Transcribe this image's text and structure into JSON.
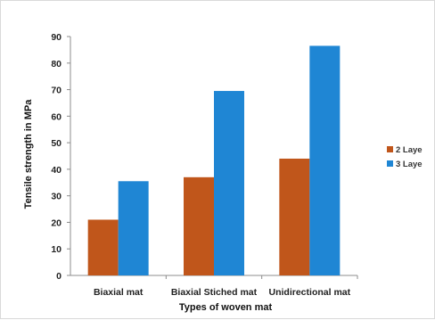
{
  "chart_data": {
    "type": "bar",
    "title": "",
    "xlabel": "Types of woven mat",
    "ylabel": "Tensile strength in MPa",
    "categories": [
      "Biaxial mat",
      "Biaxial Stiched mat",
      "Unidirectional mat"
    ],
    "series": [
      {
        "name": "2 Laye",
        "color": "#c0561b",
        "values": [
          21,
          37,
          44
        ]
      },
      {
        "name": "3 Laye",
        "color": "#1f86d4",
        "values": [
          35.5,
          69.5,
          86.5
        ]
      }
    ],
    "ylim": [
      0,
      90
    ],
    "yticks": [
      0,
      10,
      20,
      30,
      40,
      50,
      60,
      70,
      80,
      90
    ],
    "grid": false,
    "legend_position": "right"
  }
}
